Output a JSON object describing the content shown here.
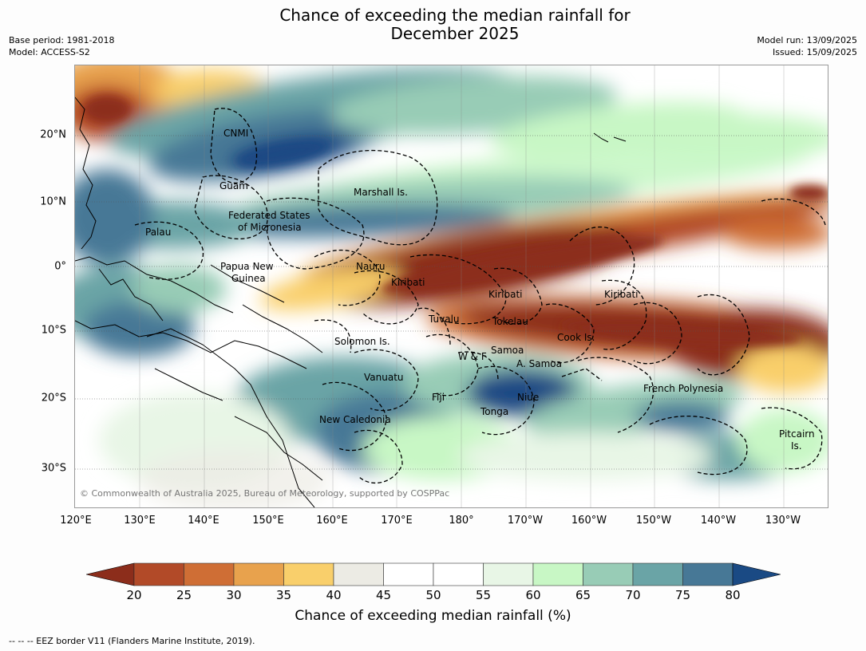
{
  "title": {
    "line1": "Chance of exceeding the median rainfall for",
    "line2": "December 2025"
  },
  "meta_left": {
    "base_period": "Base period: 1981-2018",
    "model": "Model: ACCESS-S2"
  },
  "meta_right": {
    "model_run": "Model run: 13/09/2025",
    "issued": "Issued: 15/09/2025"
  },
  "map": {
    "lon_labels": [
      "120°E",
      "130°E",
      "140°E",
      "150°E",
      "160°E",
      "170°E",
      "180°",
      "170°W",
      "160°W",
      "150°W",
      "140°W",
      "130°W"
    ],
    "lat_labels": [
      "20°N",
      "10°N",
      "0°",
      "10°S",
      "20°S",
      "30°S"
    ],
    "regions": [
      "CNMI",
      "Guam",
      "Marshall Is.",
      "Federated States",
      "of Micronesia",
      "Palau",
      "Papua New",
      "Guinea",
      "Nauru",
      "Kiribati",
      "Kiribati",
      "Kiribati",
      "Tuvalu",
      "Tokelau",
      "Cook Is.",
      "Solomon Is.",
      "W & F",
      "Samoa",
      "A. Samoa",
      "Vanuatu",
      "Fiji",
      "Niue",
      "Tonga",
      "French Polynesia",
      "New Caledonia",
      "Pitcairn",
      "Is."
    ],
    "copyright": "© Commonwealth of Australia 2025, Bureau of Meteorology, supported by COSPPac"
  },
  "colorbar": {
    "ticks": [
      "20",
      "25",
      "30",
      "35",
      "40",
      "45",
      "50",
      "55",
      "60",
      "65",
      "70",
      "75",
      "80"
    ],
    "colors": [
      "#8c2d1b",
      "#b24a28",
      "#cf6e35",
      "#e8a24d",
      "#f9cf6b",
      "#ecebe4",
      "#ffffff",
      "#ffffff",
      "#e8f6e6",
      "#c8f7c5",
      "#98ccb6",
      "#6aa4a6",
      "#477896",
      "#1a4a84"
    ],
    "label": "Chance of exceeding median rainfall (%)"
  },
  "footer": "--  --  -- EEZ border V11 (Flanders Marine Institute, 2019)."
}
